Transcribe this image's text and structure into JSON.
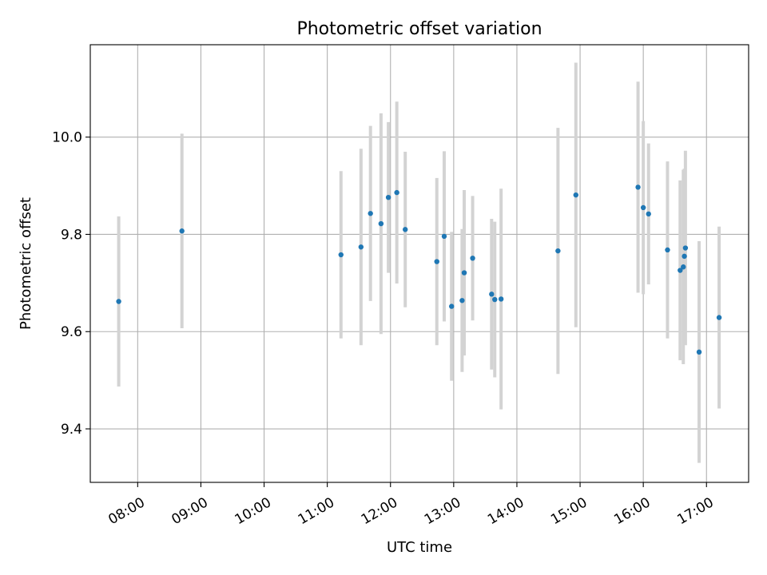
{
  "chart_data": {
    "type": "scatter",
    "title": "Photometric offset variation",
    "xlabel": "UTC time",
    "ylabel": "Photometric offset",
    "xlim": [
      "07:15",
      "17:40"
    ],
    "ylim": [
      9.29,
      10.19
    ],
    "x_ticks": [
      "08:00",
      "09:00",
      "10:00",
      "11:00",
      "12:00",
      "13:00",
      "14:00",
      "15:00",
      "16:00",
      "17:00"
    ],
    "y_ticks": [
      9.4,
      9.6,
      9.8,
      10.0
    ],
    "y_tick_labels": [
      "9.4",
      "9.6",
      "9.8",
      "10.0"
    ],
    "grid": true,
    "marker_color": "#1f77b4",
    "errorbar_color": "#d3d3d3",
    "points": [
      {
        "time": "07:42",
        "y": 9.662,
        "err": 0.175
      },
      {
        "time": "08:42",
        "y": 9.807,
        "err": 0.2
      },
      {
        "time": "11:13",
        "y": 9.758,
        "err": 0.172
      },
      {
        "time": "11:32",
        "y": 9.774,
        "err": 0.202
      },
      {
        "time": "11:41",
        "y": 9.843,
        "err": 0.18
      },
      {
        "time": "11:51",
        "y": 9.822,
        "err": 0.227
      },
      {
        "time": "11:58",
        "y": 9.876,
        "err": 0.155
      },
      {
        "time": "12:06",
        "y": 9.886,
        "err": 0.187
      },
      {
        "time": "12:14",
        "y": 9.81,
        "err": 0.16
      },
      {
        "time": "12:44",
        "y": 9.744,
        "err": 0.172
      },
      {
        "time": "12:51",
        "y": 9.796,
        "err": 0.175
      },
      {
        "time": "12:58",
        "y": 9.652,
        "err": 0.153
      },
      {
        "time": "13:08",
        "y": 9.664,
        "err": 0.147
      },
      {
        "time": "13:10",
        "y": 9.721,
        "err": 0.17
      },
      {
        "time": "13:18",
        "y": 9.751,
        "err": 0.128
      },
      {
        "time": "13:36",
        "y": 9.677,
        "err": 0.155
      },
      {
        "time": "13:39",
        "y": 9.666,
        "err": 0.16
      },
      {
        "time": "13:45",
        "y": 9.667,
        "err": 0.227
      },
      {
        "time": "14:39",
        "y": 9.766,
        "err": 0.253
      },
      {
        "time": "14:56",
        "y": 9.881,
        "err": 0.272
      },
      {
        "time": "15:55",
        "y": 9.897,
        "err": 0.217
      },
      {
        "time": "16:00",
        "y": 9.855,
        "err": 0.178
      },
      {
        "time": "16:05",
        "y": 9.842,
        "err": 0.145
      },
      {
        "time": "16:23",
        "y": 9.768,
        "err": 0.182
      },
      {
        "time": "16:35",
        "y": 9.726,
        "err": 0.185
      },
      {
        "time": "16:38",
        "y": 9.733,
        "err": 0.2
      },
      {
        "time": "16:39",
        "y": 9.755,
        "err": 0.18
      },
      {
        "time": "16:40",
        "y": 9.772,
        "err": 0.2
      },
      {
        "time": "16:53",
        "y": 9.558,
        "err": 0.228
      },
      {
        "time": "17:12",
        "y": 9.629,
        "err": 0.187
      }
    ]
  }
}
